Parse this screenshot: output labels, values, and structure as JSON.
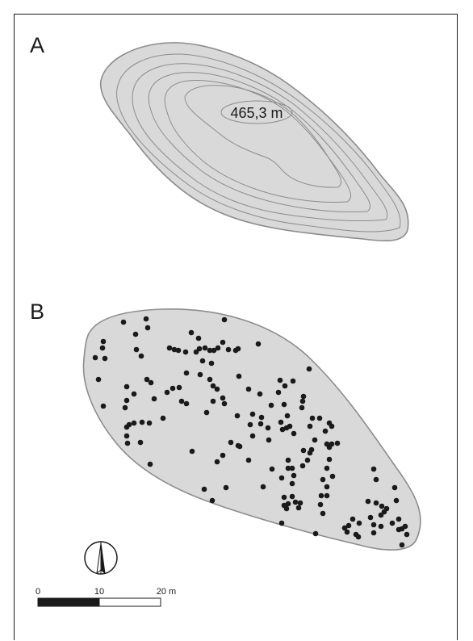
{
  "panels": {
    "a": {
      "label": "A",
      "elevation_label": "465,3 m"
    },
    "b": {
      "label": "B"
    }
  },
  "scale_bar": {
    "ticks": [
      "0",
      "10",
      "20 m"
    ]
  },
  "north_arrow": {
    "icon": "north-arrow-icon"
  },
  "colors": {
    "land_fill": "#d9d9d9",
    "outline": "#8c8c8c",
    "contour": "#8c8c8c",
    "dots": "#1a1a1a"
  }
}
